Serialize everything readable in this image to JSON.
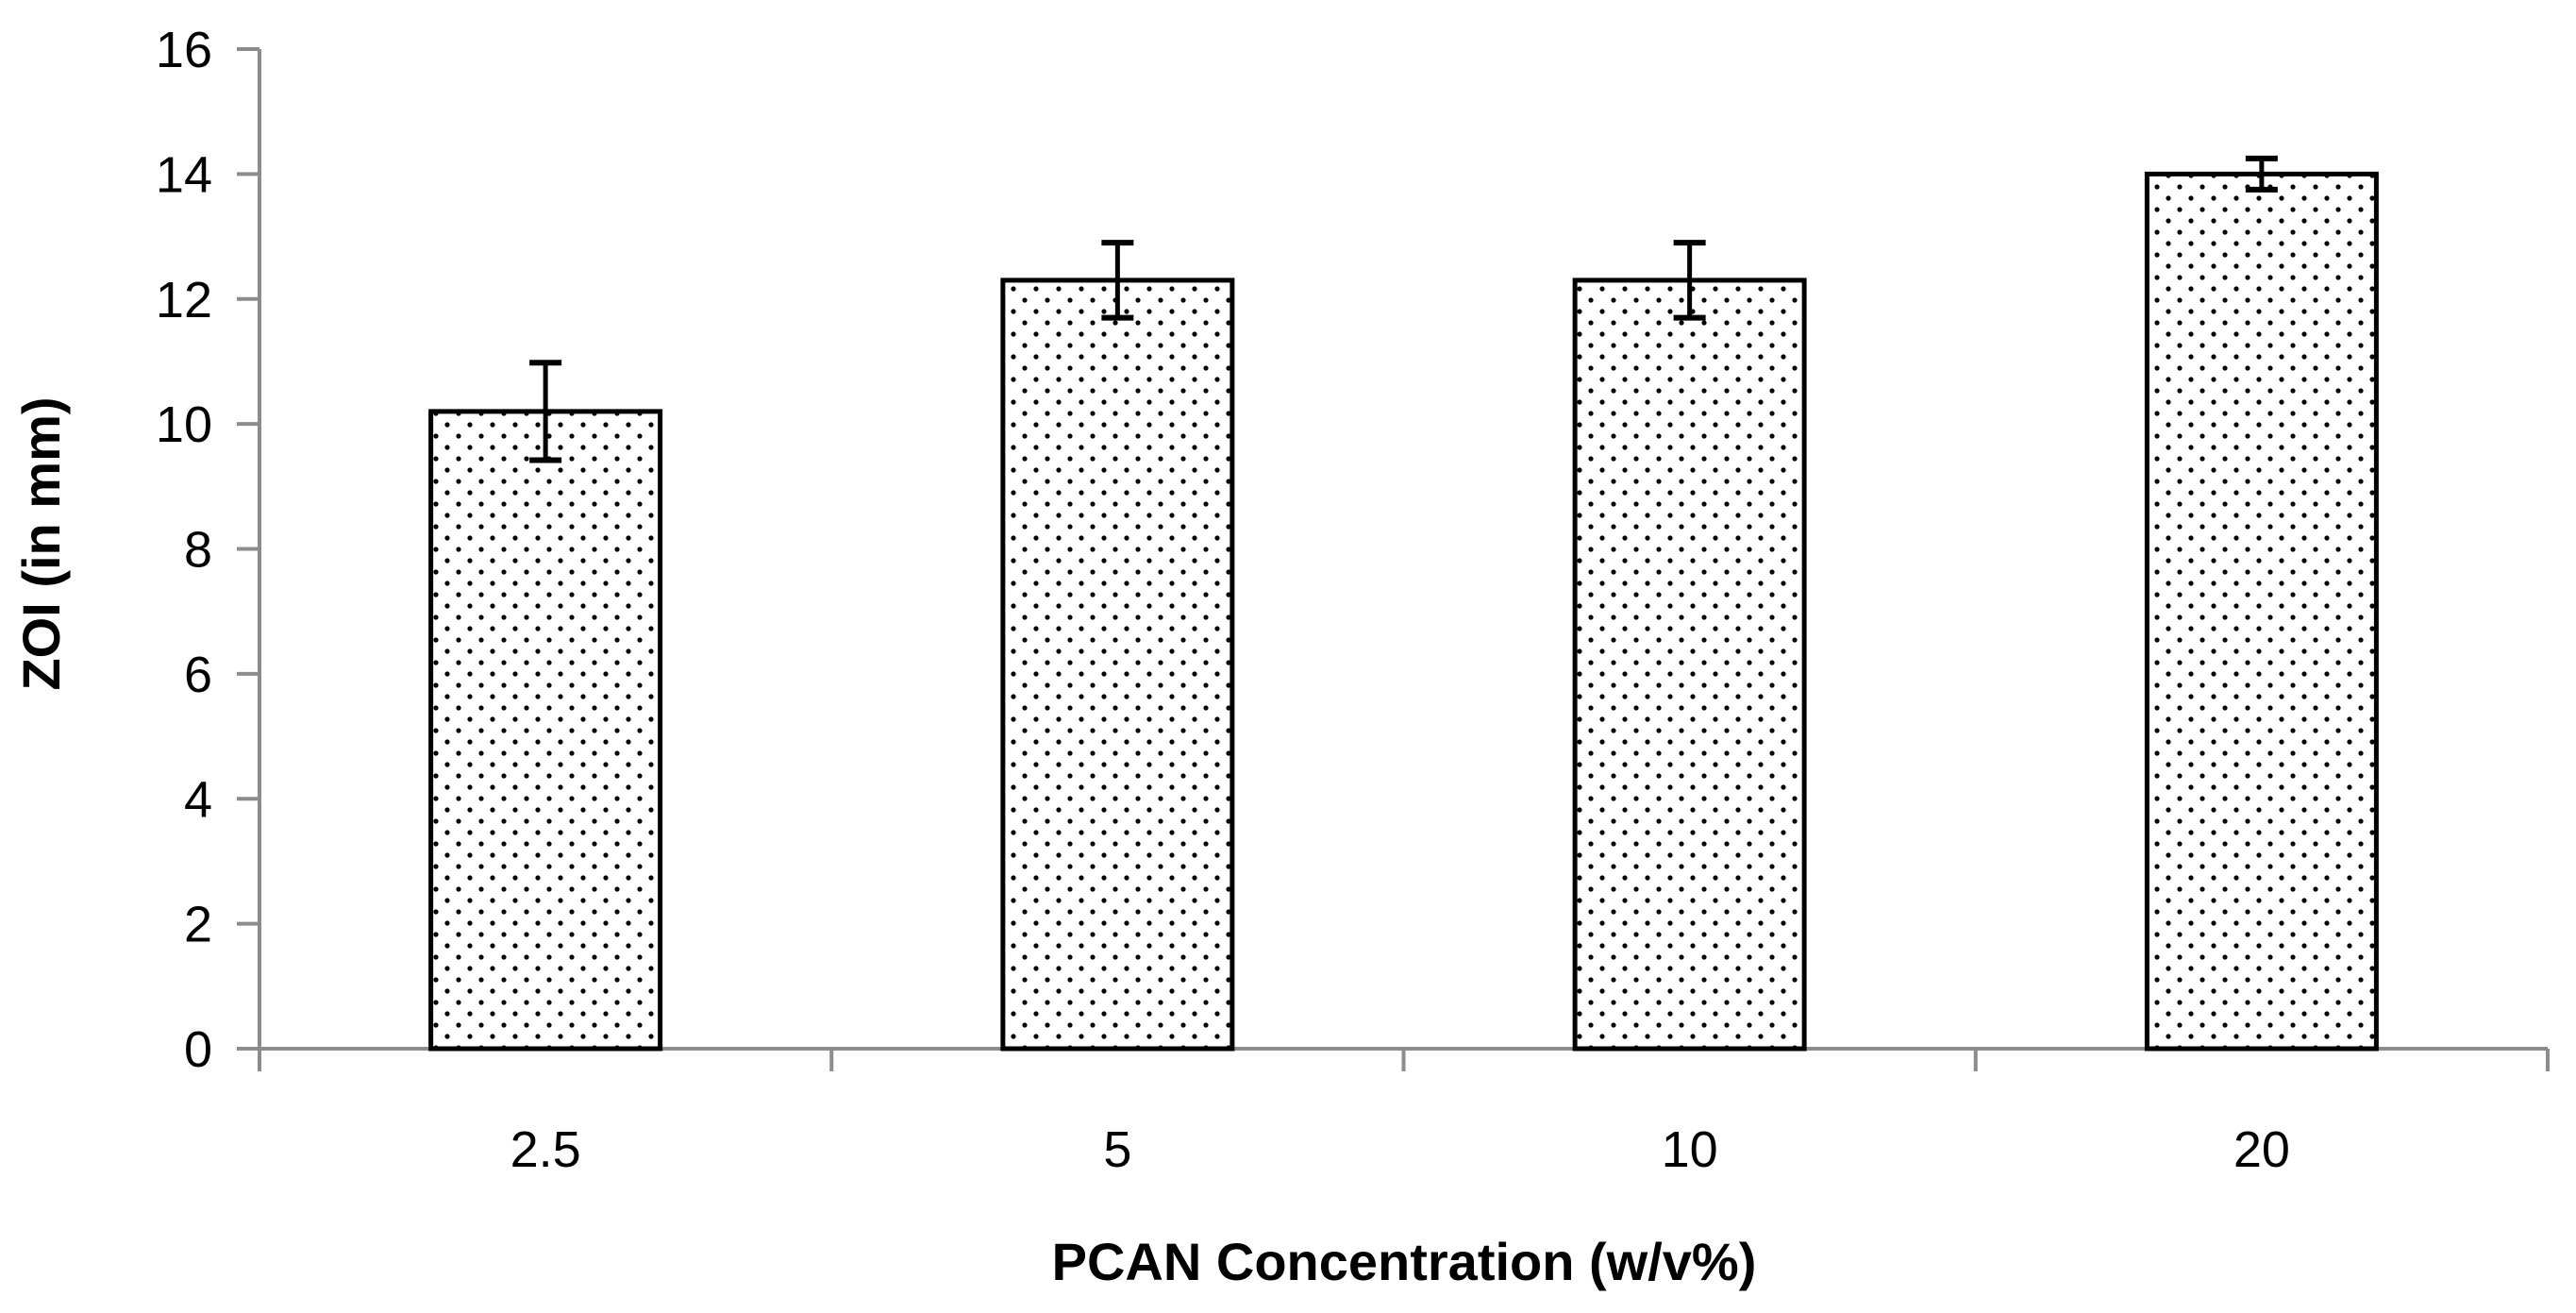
{
  "chart_data": {
    "type": "bar",
    "title": "",
    "xlabel": "PCAN Concentration (w/v%)",
    "ylabel": "ZOI (in mm)",
    "categories": [
      "2.5",
      "5",
      "10",
      "20"
    ],
    "values": [
      10.2,
      12.3,
      12.3,
      14.0
    ],
    "error_bars": [
      0.78,
      0.6,
      0.6,
      0.25
    ],
    "ylim": [
      0,
      16
    ],
    "y_ticks": [
      "0",
      "2",
      "4",
      "6",
      "8",
      "10",
      "12",
      "14",
      "16"
    ],
    "grid": false,
    "legend": "none",
    "bar_fill": "dotted pattern"
  },
  "colors": {
    "bar_fill": "#ffffff",
    "bar_dots": "#000000",
    "bar_stroke": "#000000",
    "axis": "#8c8c8c",
    "text": "#000000"
  }
}
